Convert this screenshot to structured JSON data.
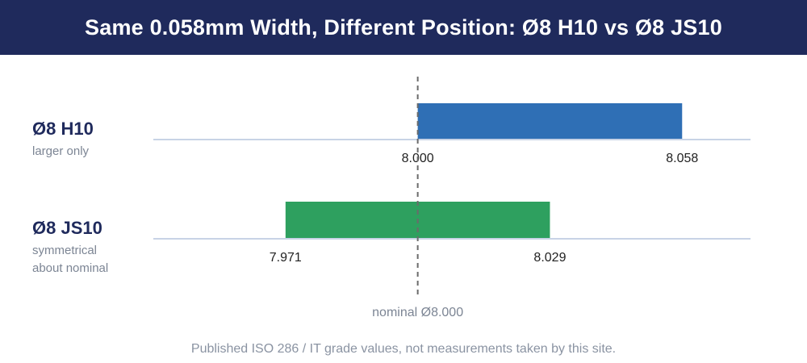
{
  "header": {
    "title": "Same 0.058mm Width, Different Position: Ø8 H10 vs Ø8 JS10",
    "background_color": "#1f2a5c"
  },
  "chart_data": {
    "type": "bar",
    "orientation": "horizontal-range",
    "axis_range": [
      7.942,
      8.073
    ],
    "nominal": {
      "value": 8.0,
      "label": "nominal Ø8.000"
    },
    "series": [
      {
        "name": "Ø8 H10",
        "description": [
          "larger only"
        ],
        "lower": 8.0,
        "upper": 8.058,
        "lower_label": "8.000",
        "upper_label": "8.058",
        "color": "#2f6fb5"
      },
      {
        "name": "Ø8 JS10",
        "description": [
          "symmetrical",
          "about nominal"
        ],
        "lower": 7.971,
        "upper": 8.029,
        "lower_label": "7.971",
        "upper_label": "8.029",
        "color": "#2ea05f"
      }
    ],
    "axis_line_color": "#c8d3e6"
  },
  "footnote": "Published ISO 286 / IT grade values, not measurements taken by this site."
}
